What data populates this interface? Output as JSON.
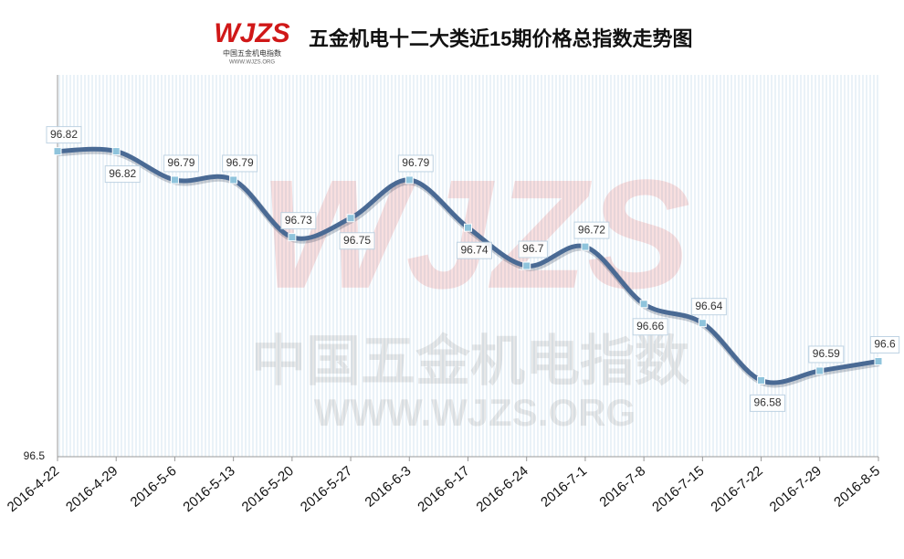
{
  "chart_data": {
    "type": "line",
    "title": "五金机电十二大类近15期价格总指数走势图",
    "logo": {
      "brand": "WJZS",
      "name": "中国五金机电指数",
      "url": "WWW.WJZS.ORG"
    },
    "categories": [
      "2016-4-22",
      "2016-4-29",
      "2016-5-6",
      "2016-5-13",
      "2016-5-20",
      "2016-5-27",
      "2016-6-3",
      "2016-6-17",
      "2016-6-24",
      "2016-7-1",
      "2016-7-8",
      "2016-7-15",
      "2016-7-22",
      "2016-7-29",
      "2016-8-5"
    ],
    "series": [
      {
        "name": "价格总指数",
        "color": "#4a6a94",
        "values": [
          96.82,
          96.82,
          96.79,
          96.79,
          96.73,
          96.75,
          96.79,
          96.74,
          96.7,
          96.72,
          96.66,
          96.64,
          96.58,
          96.59,
          96.6
        ]
      }
    ],
    "ylim": [
      96.5,
      96.9
    ],
    "yticks": [
      96.5
    ],
    "grid": true
  }
}
